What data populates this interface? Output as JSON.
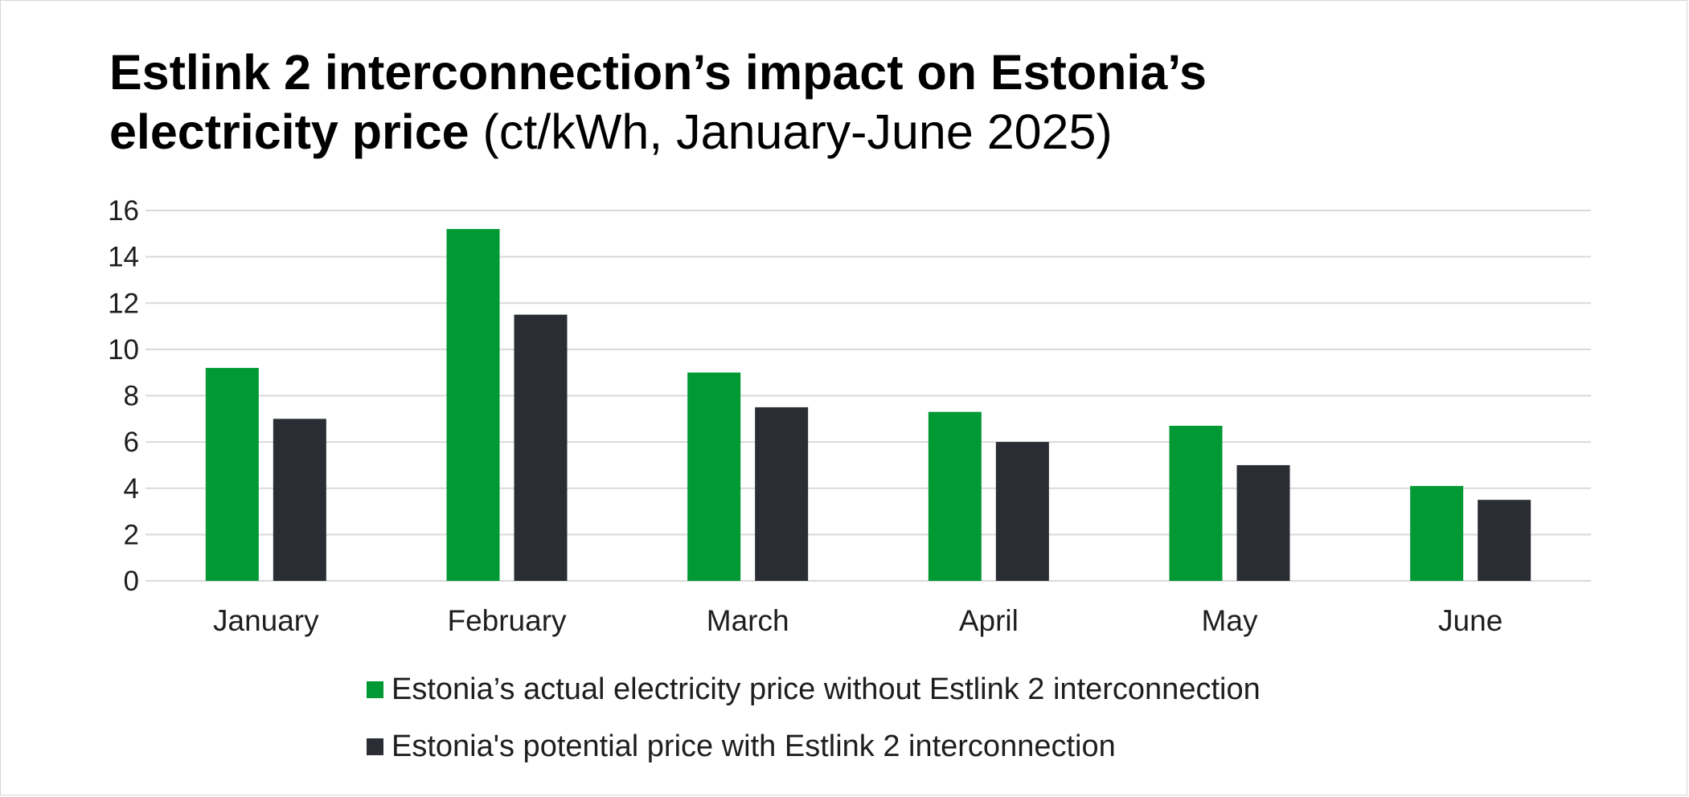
{
  "title": {
    "bold_line1": "Estlink 2 interconnection’s impact on Estonia’s",
    "bold_line2": "electricity price",
    "unit": " (ct/kWh, January-June 2025)"
  },
  "chart_data": {
    "type": "bar",
    "categories": [
      "January",
      "February",
      "March",
      "April",
      "May",
      "June"
    ],
    "series": [
      {
        "name": "Estonia’s actual electricity price without Estlink 2 interconnection",
        "color": "#009933",
        "values": [
          9.2,
          15.2,
          9.0,
          7.3,
          6.7,
          4.1
        ]
      },
      {
        "name": "Estonia's potential price with Estlink 2 interconnection",
        "color": "#2b2d35",
        "values": [
          7.0,
          11.5,
          7.5,
          6.0,
          5.0,
          3.5
        ]
      }
    ],
    "ylim": [
      0,
      16
    ],
    "yticks": [
      0,
      2,
      4,
      6,
      8,
      10,
      12,
      14,
      16
    ],
    "grid": true,
    "legend_position": "bottom"
  }
}
